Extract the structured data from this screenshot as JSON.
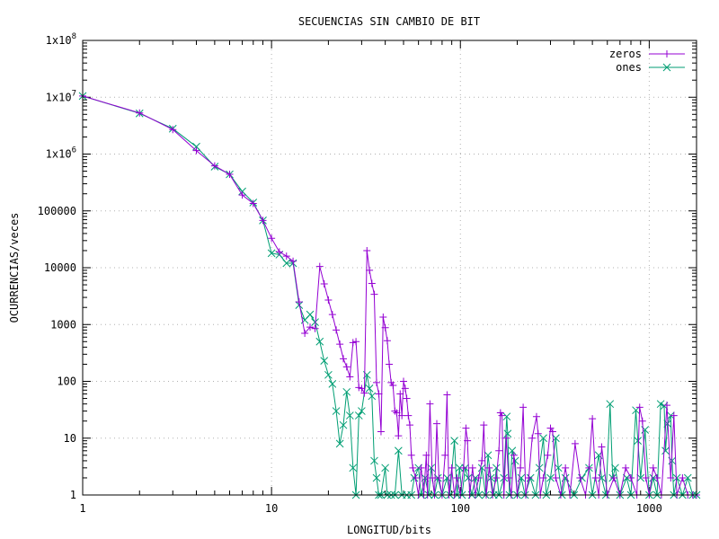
{
  "chart_data": {
    "type": "line",
    "title": "SECUENCIAS SIN CAMBIO DE BIT",
    "xlabel": "LONGITUD/bits",
    "ylabel": "OCURRENCIAS/veces",
    "xscale": "log",
    "yscale": "log",
    "xlim": [
      1,
      1780
    ],
    "ylim": [
      1,
      100000000
    ],
    "grid": true,
    "legend_position": "top-right",
    "x_ticks": [
      {
        "value": 1,
        "label": "1"
      },
      {
        "value": 10,
        "label": "10"
      },
      {
        "value": 100,
        "label": "100"
      },
      {
        "value": 1000,
        "label": "1000"
      }
    ],
    "y_ticks": [
      {
        "value": 1,
        "label": "1",
        "exp": ""
      },
      {
        "value": 10,
        "label": "10",
        "exp": ""
      },
      {
        "value": 100,
        "label": "100",
        "exp": ""
      },
      {
        "value": 1000,
        "label": "1000",
        "exp": ""
      },
      {
        "value": 10000,
        "label": "10000",
        "exp": ""
      },
      {
        "value": 100000,
        "label": "100000",
        "exp": ""
      },
      {
        "value": 1000000,
        "label": "1x10",
        "exp": "6"
      },
      {
        "value": 10000000,
        "label": "1x10",
        "exp": "7"
      },
      {
        "value": 100000000,
        "label": "1x10",
        "exp": "8"
      }
    ],
    "series": [
      {
        "name": "zeros",
        "color": "#9400d3",
        "marker": "plus",
        "points": [
          [
            1,
            10500000
          ],
          [
            2,
            5300000
          ],
          [
            3,
            2700000
          ],
          [
            4,
            1150000
          ],
          [
            5,
            620000
          ],
          [
            6,
            440000
          ],
          [
            7,
            190000
          ],
          [
            8,
            135000
          ],
          [
            9,
            68000
          ],
          [
            10,
            33000
          ],
          [
            11,
            19000
          ],
          [
            12,
            16000
          ],
          [
            13,
            13000
          ],
          [
            14,
            2500
          ],
          [
            15,
            700
          ],
          [
            16,
            900
          ],
          [
            17,
            850
          ],
          [
            18,
            10500
          ],
          [
            19,
            5200
          ],
          [
            20,
            2700
          ],
          [
            21,
            1500
          ],
          [
            22,
            800
          ],
          [
            23,
            450
          ],
          [
            24,
            250
          ],
          [
            25,
            180
          ],
          [
            26,
            120
          ],
          [
            27,
            480
          ],
          [
            28,
            500
          ],
          [
            29,
            78
          ],
          [
            30,
            75
          ],
          [
            31,
            62
          ],
          [
            32,
            20000
          ],
          [
            33,
            9000
          ],
          [
            34,
            5300
          ],
          [
            35,
            3400
          ],
          [
            36,
            95
          ],
          [
            37,
            60
          ],
          [
            38,
            13
          ],
          [
            39,
            1350
          ],
          [
            40,
            880
          ],
          [
            41,
            520
          ],
          [
            42,
            200
          ],
          [
            43,
            95
          ],
          [
            44,
            85
          ],
          [
            45,
            30
          ],
          [
            46,
            28
          ],
          [
            47,
            11
          ],
          [
            48,
            60
          ],
          [
            49,
            25
          ],
          [
            50,
            100
          ],
          [
            51,
            75
          ],
          [
            52,
            50
          ],
          [
            53,
            25
          ],
          [
            54,
            17
          ],
          [
            55,
            5
          ],
          [
            56,
            3
          ],
          [
            58,
            2
          ],
          [
            60,
            1
          ],
          [
            62,
            3
          ],
          [
            64,
            1
          ],
          [
            66,
            5
          ],
          [
            67,
            1
          ],
          [
            69,
            40
          ],
          [
            71,
            2
          ],
          [
            73,
            1
          ],
          [
            75,
            18
          ],
          [
            77,
            2
          ],
          [
            80,
            1
          ],
          [
            83,
            5
          ],
          [
            85,
            58
          ],
          [
            87,
            1
          ],
          [
            90,
            3
          ],
          [
            93,
            1
          ],
          [
            96,
            2
          ],
          [
            100,
            1
          ],
          [
            104,
            3
          ],
          [
            107,
            15
          ],
          [
            109,
            9
          ],
          [
            112,
            1
          ],
          [
            116,
            3
          ],
          [
            120,
            1
          ],
          [
            125,
            2
          ],
          [
            130,
            4
          ],
          [
            133,
            17
          ],
          [
            137,
            1
          ],
          [
            142,
            3
          ],
          [
            148,
            1
          ],
          [
            155,
            2
          ],
          [
            160,
            6
          ],
          [
            163,
            28
          ],
          [
            166,
            25
          ],
          [
            170,
            1
          ],
          [
            175,
            10
          ],
          [
            180,
            2
          ],
          [
            186,
            1
          ],
          [
            192,
            5
          ],
          [
            200,
            1
          ],
          [
            208,
            3
          ],
          [
            215,
            35
          ],
          [
            222,
            1
          ],
          [
            230,
            2
          ],
          [
            240,
            10
          ],
          [
            253,
            24
          ],
          [
            258,
            12
          ],
          [
            265,
            1
          ],
          [
            275,
            2
          ],
          [
            290,
            5
          ],
          [
            300,
            15
          ],
          [
            308,
            13
          ],
          [
            320,
            2
          ],
          [
            340,
            1
          ],
          [
            360,
            3
          ],
          [
            380,
            1
          ],
          [
            405,
            8
          ],
          [
            430,
            2
          ],
          [
            460,
            1
          ],
          [
            480,
            3
          ],
          [
            500,
            22
          ],
          [
            520,
            2
          ],
          [
            540,
            1
          ],
          [
            560,
            7
          ],
          [
            600,
            1
          ],
          [
            650,
            2
          ],
          [
            700,
            1
          ],
          [
            750,
            3
          ],
          [
            800,
            2
          ],
          [
            860,
            1
          ],
          [
            890,
            35
          ],
          [
            920,
            20
          ],
          [
            960,
            2
          ],
          [
            1000,
            1
          ],
          [
            1050,
            3
          ],
          [
            1100,
            2
          ],
          [
            1160,
            1
          ],
          [
            1240,
            38
          ],
          [
            1300,
            2
          ],
          [
            1350,
            25
          ],
          [
            1400,
            1
          ],
          [
            1500,
            2
          ],
          [
            1600,
            1
          ],
          [
            1700,
            1
          ],
          [
            1780,
            1
          ]
        ]
      },
      {
        "name": "ones",
        "color": "#009e73",
        "marker": "cross",
        "points": [
          [
            1,
            10500000
          ],
          [
            2,
            5200000
          ],
          [
            3,
            2800000
          ],
          [
            4,
            1350000
          ],
          [
            5,
            600000
          ],
          [
            6,
            440000
          ],
          [
            7,
            220000
          ],
          [
            8,
            140000
          ],
          [
            9,
            68000
          ],
          [
            10,
            18000
          ],
          [
            11,
            17000
          ],
          [
            12,
            12000
          ],
          [
            13,
            12000
          ],
          [
            14,
            2200
          ],
          [
            15,
            1200
          ],
          [
            16,
            1500
          ],
          [
            17,
            1100
          ],
          [
            18,
            500
          ],
          [
            19,
            230
          ],
          [
            20,
            130
          ],
          [
            21,
            90
          ],
          [
            22,
            30
          ],
          [
            23,
            8
          ],
          [
            24,
            17
          ],
          [
            25,
            65
          ],
          [
            26,
            25
          ],
          [
            27,
            3
          ],
          [
            28,
            1
          ],
          [
            29,
            25
          ],
          [
            30,
            30
          ],
          [
            32,
            130
          ],
          [
            33,
            75
          ],
          [
            34,
            55
          ],
          [
            35,
            4
          ],
          [
            36,
            2
          ],
          [
            37,
            1
          ],
          [
            38,
            1
          ],
          [
            40,
            3
          ],
          [
            41,
            1
          ],
          [
            43,
            1
          ],
          [
            45,
            1
          ],
          [
            47,
            6
          ],
          [
            49,
            1
          ],
          [
            52,
            1
          ],
          [
            55,
            1
          ],
          [
            57,
            2
          ],
          [
            60,
            3
          ],
          [
            62,
            1
          ],
          [
            65,
            2
          ],
          [
            68,
            1
          ],
          [
            70,
            3
          ],
          [
            73,
            1
          ],
          [
            76,
            2
          ],
          [
            80,
            1
          ],
          [
            85,
            2
          ],
          [
            88,
            1
          ],
          [
            93,
            9
          ],
          [
            96,
            1
          ],
          [
            99,
            3
          ],
          [
            102,
            1
          ],
          [
            106,
            3
          ],
          [
            110,
            2
          ],
          [
            115,
            1
          ],
          [
            120,
            2
          ],
          [
            125,
            1
          ],
          [
            130,
            3
          ],
          [
            136,
            1
          ],
          [
            140,
            5
          ],
          [
            145,
            2
          ],
          [
            150,
            1
          ],
          [
            155,
            3
          ],
          [
            160,
            1
          ],
          [
            170,
            2
          ],
          [
            176,
            24
          ],
          [
            178,
            12
          ],
          [
            182,
            1
          ],
          [
            188,
            6
          ],
          [
            195,
            4
          ],
          [
            200,
            1
          ],
          [
            210,
            2
          ],
          [
            220,
            1
          ],
          [
            235,
            2
          ],
          [
            250,
            1
          ],
          [
            262,
            3
          ],
          [
            275,
            10
          ],
          [
            285,
            1
          ],
          [
            300,
            2
          ],
          [
            320,
            10
          ],
          [
            330,
            3
          ],
          [
            345,
            1
          ],
          [
            360,
            2
          ],
          [
            400,
            1
          ],
          [
            440,
            2
          ],
          [
            480,
            3
          ],
          [
            500,
            1
          ],
          [
            540,
            5
          ],
          [
            560,
            2
          ],
          [
            590,
            1
          ],
          [
            620,
            40
          ],
          [
            640,
            2
          ],
          [
            660,
            3
          ],
          [
            700,
            1
          ],
          [
            760,
            2
          ],
          [
            800,
            1
          ],
          [
            850,
            31
          ],
          [
            870,
            9
          ],
          [
            900,
            2
          ],
          [
            950,
            14
          ],
          [
            1000,
            1
          ],
          [
            1050,
            2
          ],
          [
            1100,
            1
          ],
          [
            1150,
            40
          ],
          [
            1200,
            37
          ],
          [
            1220,
            6
          ],
          [
            1250,
            18
          ],
          [
            1300,
            25
          ],
          [
            1320,
            4
          ],
          [
            1350,
            1
          ],
          [
            1400,
            2
          ],
          [
            1500,
            1
          ],
          [
            1600,
            2
          ],
          [
            1700,
            1
          ],
          [
            1780,
            1
          ]
        ]
      }
    ]
  }
}
